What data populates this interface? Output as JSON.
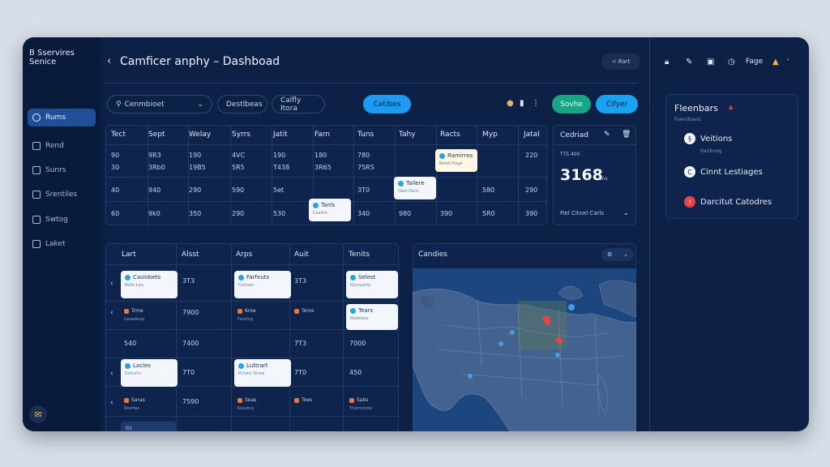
{
  "sidebar": {
    "brand_line1": "B Sservires",
    "brand_line2": "Senice",
    "items": [
      {
        "label": "Rums",
        "active": true
      },
      {
        "label": "Rend"
      },
      {
        "label": "Sunrs"
      },
      {
        "label": "Srentiles"
      },
      {
        "label": "Swtog"
      },
      {
        "label": "Laket"
      }
    ]
  },
  "header": {
    "title": "Camficer anphy – Dashboad",
    "back_button": "< Rart",
    "right_label": "Fage",
    "icons": [
      "lock-icon",
      "pen-icon",
      "bookmark-icon",
      "clock-icon",
      "user-icon"
    ]
  },
  "toolbar": {
    "search_value": "Cenmbioet",
    "pill2": "Destlbeas",
    "pill3": "Calfly Itora",
    "blue_button": "Cetibes",
    "green_button": "Sovhe",
    "cyan_button": "Cifyer"
  },
  "top_table": {
    "headers": [
      "Tect",
      "Sept",
      "Welay",
      "Syrrs",
      "Jatit",
      "Farn",
      "Tuns",
      "Tahy",
      "Racts",
      "Myp",
      "Jatal"
    ],
    "rows": [
      [
        "90",
        "9R3",
        "190",
        "4VC",
        "190",
        "180",
        "780",
        "",
        "",
        "",
        "220"
      ],
      [
        "30",
        "3Rb0",
        "19B5",
        "5R5",
        "T438",
        "3R65",
        "75RS",
        "",
        "",
        "",
        ""
      ],
      [
        "40",
        "940",
        "290",
        "590",
        "5et",
        "",
        "3T0",
        "",
        "",
        "580",
        "290"
      ],
      [
        "60",
        "9k0",
        "350",
        "290",
        "530",
        "",
        "340",
        "980",
        "390",
        "5R0",
        "390"
      ]
    ],
    "chips": [
      {
        "label": "Ramirres",
        "sub": "Beleit Hsge"
      },
      {
        "label": "Tallere",
        "sub": "Dest Dons"
      },
      {
        "label": "Tanls",
        "sub": "Coalmt"
      }
    ]
  },
  "stats": {
    "title": "Cedriad",
    "sub": "TTS 400",
    "value": "3168",
    "unit": "ons",
    "footer": "Fiel Citnel Carls"
  },
  "bottom_table": {
    "headers": [
      "Lart",
      "Alsst",
      "Arps",
      "Auit",
      "Tenits"
    ],
    "rows": [
      {
        "c1": {
          "label": "Caslobets",
          "sub": "Rolfs Liss"
        },
        "c2": "3T3",
        "c3": {
          "label": "Farfeuts",
          "sub": "Fuchsor"
        },
        "c4": "3T3",
        "c5": {
          "label": "Selest",
          "sub": "Ruorsanfa"
        }
      },
      {
        "c1": {
          "label": "Trme",
          "sub": "Gesedoup"
        },
        "c2": "7900",
        "c3": {
          "label": "Kroe",
          "sub": "Fesding"
        },
        "c4": "Tems",
        "c5": {
          "label": "Tears",
          "sub": "Redeless"
        }
      },
      {
        "c1": {
          "label": "",
          "sub": ""
        },
        "c2": "7400",
        "c3": {
          "label": "",
          "sub": ""
        },
        "c4": "7T3",
        "c5": {
          "label": "7000",
          "sub": ""
        }
      },
      {
        "c1": {
          "label": "Lacles",
          "sub": "Drecel's"
        },
        "c2": "7T0",
        "c3": {
          "label": "Luttrart",
          "sub": "Pctolst Dines"
        },
        "c4": "7T0",
        "c5": {
          "label": "450",
          "sub": ""
        }
      },
      {
        "c1": {
          "label": "Saras",
          "sub": "Reertes"
        },
        "c2": "7590",
        "c3": {
          "label": "Seas",
          "sub": "Kosalivy"
        },
        "c4": "Toes",
        "c5": {
          "label": "Sabs",
          "sub": "Thermorsts"
        }
      }
    ],
    "footer_chip": "Bit"
  },
  "map": {
    "title": "Candies"
  },
  "right_panel": {
    "title": "Fleenbars",
    "sub": "Fuendoans",
    "items": [
      {
        "label": "Veitions",
        "sub": "Ranbnog"
      },
      {
        "label": "Cinnt Lestiages",
        "sub": ""
      },
      {
        "label": "Darcitut Catodres",
        "sub": ""
      }
    ]
  }
}
